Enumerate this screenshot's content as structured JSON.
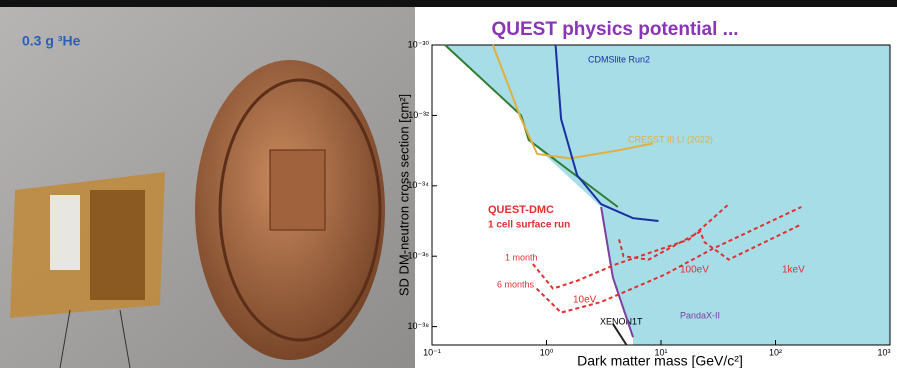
{
  "photo_label": "0.3 g ³He",
  "chart_data": {
    "type": "line",
    "title": "QUEST physics potential ...",
    "xlabel": "Dark matter mass [GeV/c²]",
    "ylabel": "SD DM-neutron cross section [cm²]",
    "log_x": true,
    "log_y": true,
    "xlim": [
      0.1,
      1000
    ],
    "xticks": [
      {
        "value": 0.1,
        "label": "10⁻¹"
      },
      {
        "value": 1,
        "label": "10⁰"
      },
      {
        "value": 10,
        "label": "10¹"
      },
      {
        "value": 100,
        "label": "10²"
      },
      {
        "value": 1000,
        "label": "10³"
      }
    ],
    "ylim": [
      3e-39,
      1e-30
    ],
    "yticks": [
      {
        "value": 1e-30,
        "label": "10⁻³⁰"
      },
      {
        "value": 1e-32,
        "label": "10⁻³²"
      },
      {
        "value": 1e-34,
        "label": "10⁻³⁴"
      },
      {
        "value": 1e-36,
        "label": "10⁻³⁶"
      },
      {
        "value": 1e-38,
        "label": "10⁻³⁸"
      }
    ],
    "series": [
      {
        "color": "#2e7d32",
        "x": [
          0.13,
          0.6,
          0.7,
          4.2
        ],
        "values": [
          1e-30,
          1e-32,
          2e-33,
          2.5e-35
        ]
      },
      {
        "name": "CRESST III LI (2022)",
        "color": "#e0b040",
        "x": [
          0.34,
          0.6,
          0.83,
          1.6,
          4.1,
          8.5
        ],
        "values": [
          1e-30,
          8e-33,
          8e-34,
          6e-34,
          1e-33,
          1.6e-33
        ]
      },
      {
        "name": "CDMSlite Run2",
        "color": "#1a2fa0",
        "x": [
          1.2,
          1.34,
          1.85,
          3,
          5.7,
          9.5
        ],
        "values": [
          1e-30,
          8e-33,
          2e-34,
          3e-35,
          1.2e-35,
          1e-35
        ]
      },
      {
        "name": "XENON1T",
        "color": "#222222",
        "x": [
          3.8,
          5
        ],
        "values": [
          1.2e-38,
          3e-39
        ]
      },
      {
        "name": "PandaX-II",
        "color": "#7b3fa0",
        "x": [
          3,
          3.8,
          5.7
        ],
        "values": [
          2.5e-35,
          2.5e-37,
          5e-39
        ]
      },
      {
        "name": "1 month",
        "color": "#e03030",
        "style": "dashed",
        "x": [
          0.76,
          1.14,
          1.85,
          4.1,
          17.6,
          39
        ],
        "values": [
          6e-37,
          1.2e-37,
          2e-37,
          6e-37,
          3e-36,
          3e-35
        ]
      },
      {
        "name": "6 months",
        "color": "#e03030",
        "style": "dashed",
        "x": [
          0.82,
          1.34,
          3,
          10.8,
          28,
          168
        ],
        "values": [
          1.2e-37,
          2.5e-38,
          5e-38,
          3e-37,
          1.6e-36,
          2.5e-35
        ]
      },
      {
        "color": "#e03030",
        "style": "dashed",
        "x": [
          4.3,
          4.7,
          7.8,
          22,
          24,
          39,
          168
        ],
        "values": [
          3e-36,
          1e-36,
          8e-37,
          5e-36,
          2.5e-36,
          8e-37,
          8e-36
        ]
      }
    ],
    "annotations": [
      "QUEST-DMC",
      "1 cell surface run",
      "10eV",
      "100eV",
      "1keV"
    ]
  }
}
